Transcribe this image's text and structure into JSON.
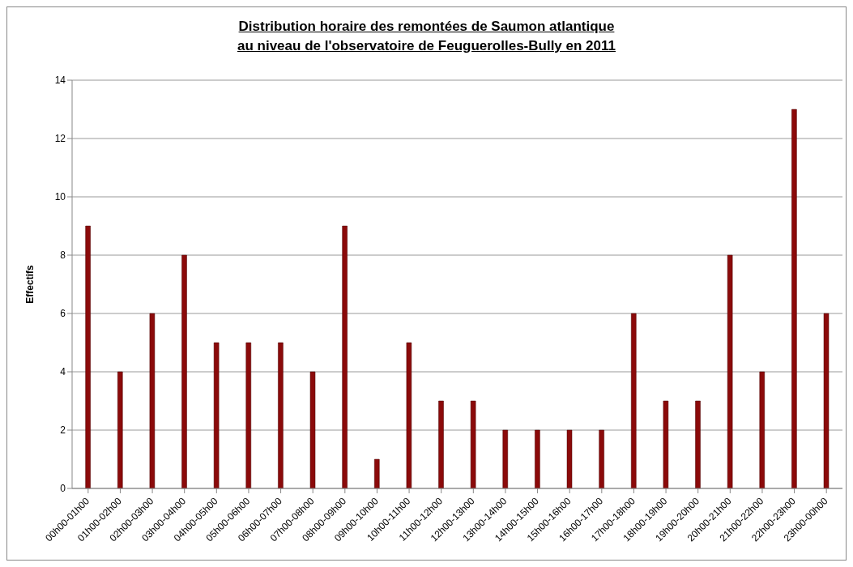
{
  "chart_data": {
    "type": "bar",
    "title": "Distribution horaire des remontées de Saumon atlantique\nau niveau de l'observatoire de Feuguerolles-Bully en 2011",
    "ylabel": "Effectifs",
    "categories": [
      "00h00-01h00",
      "01h00-02h00",
      "02h00-03h00",
      "03h00-04h00",
      "04h00-05h00",
      "05h00-06h00",
      "06h00-07h00",
      "07h00-08h00",
      "08h00-09h00",
      "09h00-10h00",
      "10h00-11h00",
      "11h00-12h00",
      "12h00-13h00",
      "13h00-14h00",
      "14h00-15h00",
      "15h00-16h00",
      "16h00-17h00",
      "17h00-18h00",
      "18h00-19h00",
      "19h00-20h00",
      "20h00-21h00",
      "21h00-22h00",
      "22h00-23h00",
      "23h00-00h00"
    ],
    "values": [
      9,
      4,
      6,
      8,
      5,
      5,
      5,
      4,
      9,
      1,
      5,
      3,
      3,
      2,
      2,
      2,
      2,
      6,
      3,
      3,
      8,
      4,
      13,
      6
    ],
    "color": "#8b0a0a",
    "ylim": [
      0,
      14
    ],
    "yticks": [
      0,
      2,
      4,
      6,
      8,
      10,
      12,
      14
    ],
    "grid": "y"
  }
}
